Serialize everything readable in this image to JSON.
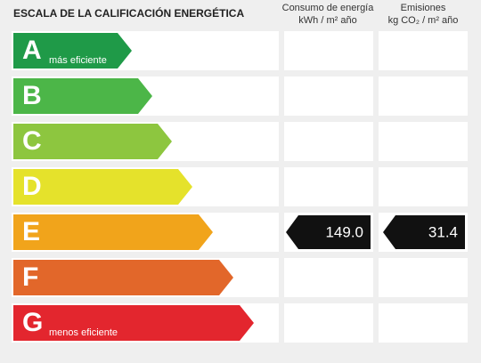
{
  "header": {
    "title": "ESCALA DE LA CALIFICACIÓN ENERGÉTICA",
    "consumption_title": "Consumo de energía",
    "consumption_unit": "kWh / m² año",
    "emissions_title": "Emisiones",
    "emissions_unit": "kg CO₂ / m² año"
  },
  "rows": [
    {
      "letter": "A",
      "label": "más eficiente",
      "color": "#1f9a48"
    },
    {
      "letter": "B",
      "color": "#4cb648"
    },
    {
      "letter": "C",
      "color": "#8dc63f"
    },
    {
      "letter": "D",
      "color": "#e5e22b"
    },
    {
      "letter": "E",
      "color": "#f1a41b",
      "consumption": "149.0",
      "emissions": "31.4"
    },
    {
      "letter": "F",
      "color": "#e2672a"
    },
    {
      "letter": "G",
      "label": "menos eficiente",
      "color": "#e3262e"
    }
  ]
}
